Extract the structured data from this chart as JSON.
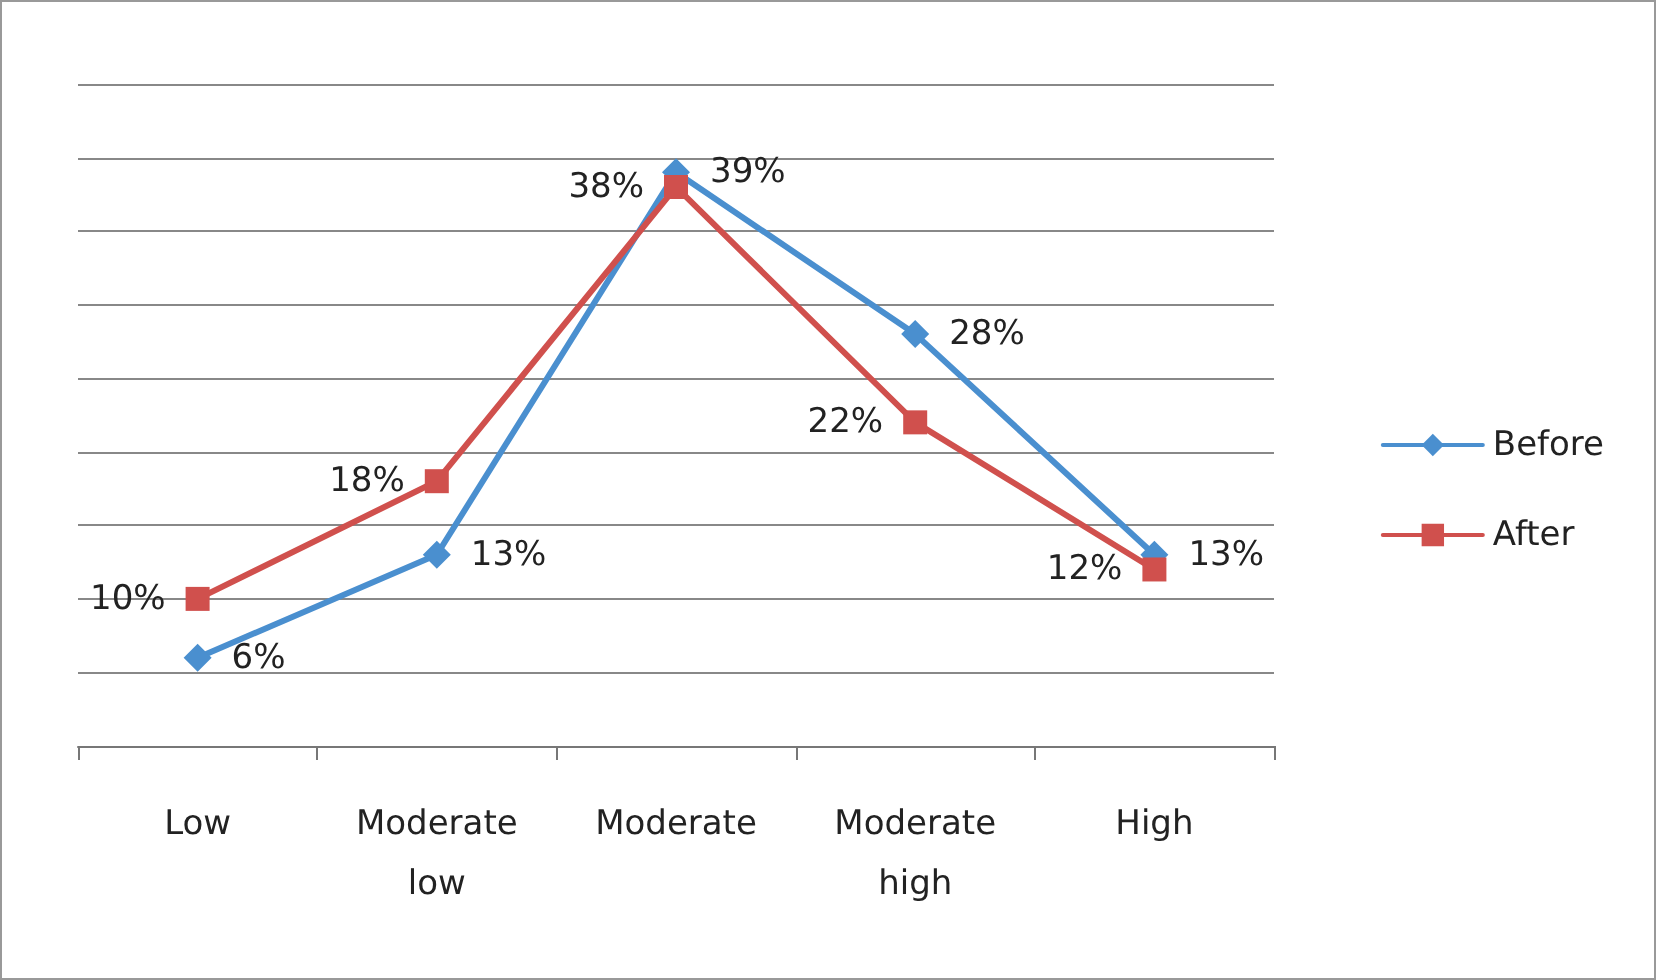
{
  "chart_data": {
    "type": "line",
    "categories": [
      "Low",
      "Moderate low",
      "Moderate",
      "Moderate high",
      "High"
    ],
    "series": [
      {
        "name": "Before",
        "color": "#4a8fcf",
        "marker": "diamond",
        "values": [
          6,
          13,
          39,
          28,
          13
        ],
        "value_labels": [
          "6%",
          "13%",
          "39%",
          "28%",
          "13%"
        ]
      },
      {
        "name": "After",
        "color": "#d0504d",
        "marker": "square",
        "values": [
          10,
          18,
          38,
          22,
          12
        ],
        "value_labels": [
          "10%",
          "18%",
          "38%",
          "22%",
          "12%"
        ]
      }
    ],
    "ylim": [
      0,
      45
    ],
    "yticks": [
      {
        "value": 0,
        "label": null
      },
      {
        "value": 5,
        "label": null
      },
      {
        "value": 10,
        "label": null
      },
      {
        "value": 15,
        "label": null
      },
      {
        "value": 20,
        "label": null
      },
      {
        "value": 25,
        "label": null
      },
      {
        "value": 30,
        "label": null
      },
      {
        "value": 35,
        "label": null
      },
      {
        "value": 40,
        "label": null
      },
      {
        "value": 45,
        "label": null
      }
    ],
    "tick_labels": "x",
    "grid": "y",
    "legend": "right",
    "line_style": "solid"
  }
}
